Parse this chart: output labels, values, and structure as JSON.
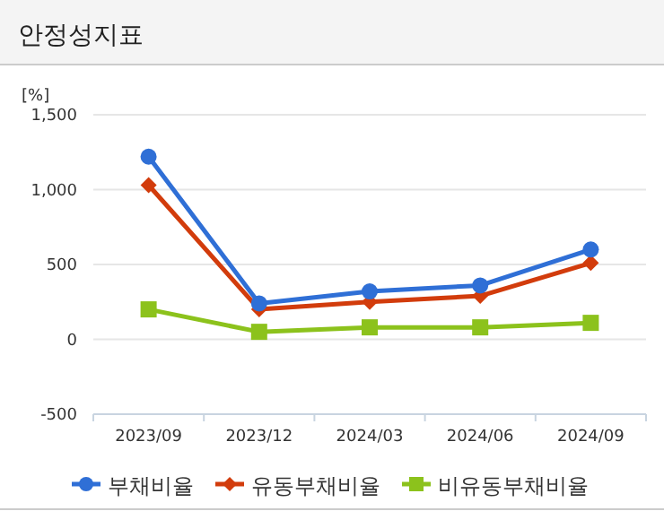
{
  "chart_data": {
    "type": "line",
    "title": "안정성지표",
    "ylabel": "[%]",
    "categories": [
      "2023/09",
      "2023/12",
      "2024/03",
      "2024/06",
      "2024/09"
    ],
    "series": [
      {
        "name": "부채비율",
        "color": "#2f6fd6",
        "marker": "circle",
        "values": [
          1220,
          240,
          320,
          360,
          600
        ]
      },
      {
        "name": "유동부채비율",
        "color": "#d23c0c",
        "marker": "diamond",
        "values": [
          1030,
          200,
          250,
          290,
          510
        ]
      },
      {
        "name": "비유동부채비율",
        "color": "#8cc21c",
        "marker": "square",
        "values": [
          200,
          50,
          80,
          80,
          110
        ]
      }
    ],
    "ylim": [
      -500,
      1500
    ],
    "yticks": [
      {
        "value": -500,
        "label": "-500"
      },
      0,
      500,
      {
        "value": 1000,
        "label": "1,000"
      },
      {
        "value": 1500,
        "label": "1,500"
      }
    ],
    "grid": "y",
    "legend": "bottom"
  }
}
